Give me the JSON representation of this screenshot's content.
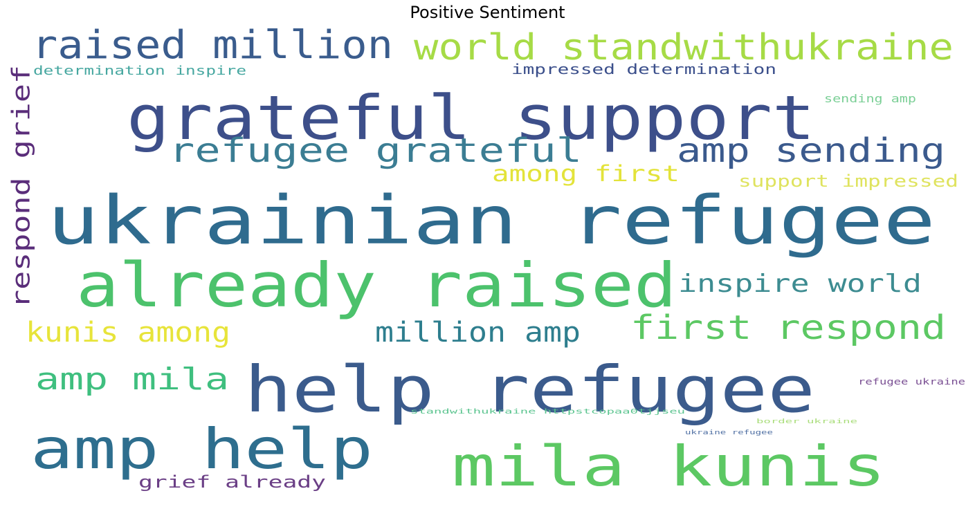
{
  "chart_data": {
    "type": "wordcloud",
    "title": "Positive Sentiment",
    "words": [
      {
        "text": "ukrainian refugee",
        "color": "#2f6b8e"
      },
      {
        "text": "help refugee",
        "color": "#3b5b8c"
      },
      {
        "text": "already raised",
        "color": "#4cc26c"
      },
      {
        "text": "grateful support",
        "color": "#3d4f8a"
      },
      {
        "text": "mila kunis",
        "color": "#5cc863"
      },
      {
        "text": "amp help",
        "color": "#2e6e8e"
      },
      {
        "text": "raised million",
        "color": "#3a5c8d"
      },
      {
        "text": "world standwithukraine",
        "color": "#a6db46"
      },
      {
        "text": "refugee grateful",
        "color": "#3b7d93"
      },
      {
        "text": "amp sending",
        "color": "#3b5a8d"
      },
      {
        "text": "first respond",
        "color": "#5cc863"
      },
      {
        "text": "inspire world",
        "color": "#3d8c91"
      },
      {
        "text": "respond grief",
        "color": "#5a2d7a"
      },
      {
        "text": "amp mila",
        "color": "#3fbf7f"
      },
      {
        "text": "kunis among",
        "color": "#e7e43a"
      },
      {
        "text": "million amp",
        "color": "#2e7e8e"
      },
      {
        "text": "among first",
        "color": "#e3e33a"
      },
      {
        "text": "support impressed",
        "color": "#dfe35f"
      },
      {
        "text": "grief already",
        "color": "#6b3f86"
      },
      {
        "text": "impressed determination",
        "color": "#3b4f8b"
      },
      {
        "text": "determination inspire",
        "color": "#46a7a0"
      },
      {
        "text": "sending amp",
        "color": "#7bcf96"
      },
      {
        "text": "refugee ukraine",
        "color": "#7a4f93"
      },
      {
        "text": "standwithukraine httpstcopaa0tjjseu",
        "color": "#5bc48f"
      },
      {
        "text": "border ukraine",
        "color": "#a9dd7a"
      },
      {
        "text": "ukraine refugee",
        "color": "#4f6fa3"
      }
    ]
  }
}
